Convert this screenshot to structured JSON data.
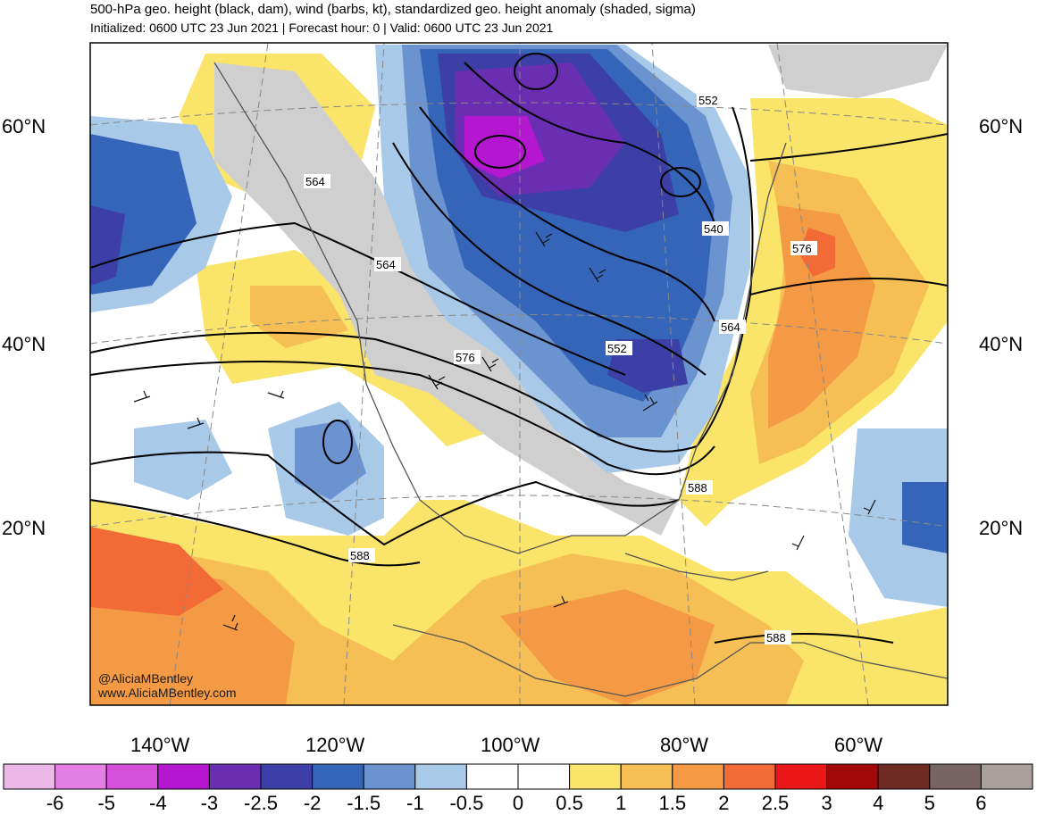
{
  "header": {
    "title": "500-hPa geo. height (black, dam), wind (barbs, kt), standardized geo. height anomaly (shaded, sigma)",
    "subtitle": "Initialized: 0600 UTC 23 Jun 2021 | Forecast hour: 0 | Valid: 0600 UTC 23 Jun 2021"
  },
  "map": {
    "lat_labels": [
      {
        "label": "60°N",
        "lat": 60
      },
      {
        "label": "40°N",
        "lat": 40
      },
      {
        "label": "20°N",
        "lat": 20
      }
    ],
    "lon_labels": [
      {
        "label": "140°W",
        "lon": -140
      },
      {
        "label": "120°W",
        "lon": -120
      },
      {
        "label": "100°W",
        "lon": -100
      },
      {
        "label": "80°W",
        "lon": -80
      },
      {
        "label": "60°W",
        "lon": -60
      }
    ],
    "contour_labels": [
      "552",
      "564",
      "564",
      "540",
      "576",
      "564",
      "552",
      "576",
      "588",
      "588",
      "588"
    ],
    "credit_handle": "@AliciaMBentley",
    "credit_url": "www.AliciaMBentley.com"
  },
  "colorbar": {
    "labels": [
      "-6",
      "-5",
      "-4",
      "-3",
      "-2.5",
      "-2",
      "-1.5",
      "-1",
      "-0.5",
      "0",
      "0.5",
      "1",
      "1.5",
      "2",
      "2.5",
      "3",
      "4",
      "5",
      "6"
    ],
    "colors": [
      "#eab7e6",
      "#e57ee5",
      "#d54fdb",
      "#b516cf",
      "#6a2eb3",
      "#3b3fa6",
      "#3565b8",
      "#6a93cf",
      "#a9c9e9",
      "#ffffff",
      "#ffffff",
      "#fae46a",
      "#f5bf55",
      "#f49a45",
      "#f26a35",
      "#e91717",
      "#a30909",
      "#6c2a22",
      "#786464",
      "#a9a09e"
    ]
  }
}
